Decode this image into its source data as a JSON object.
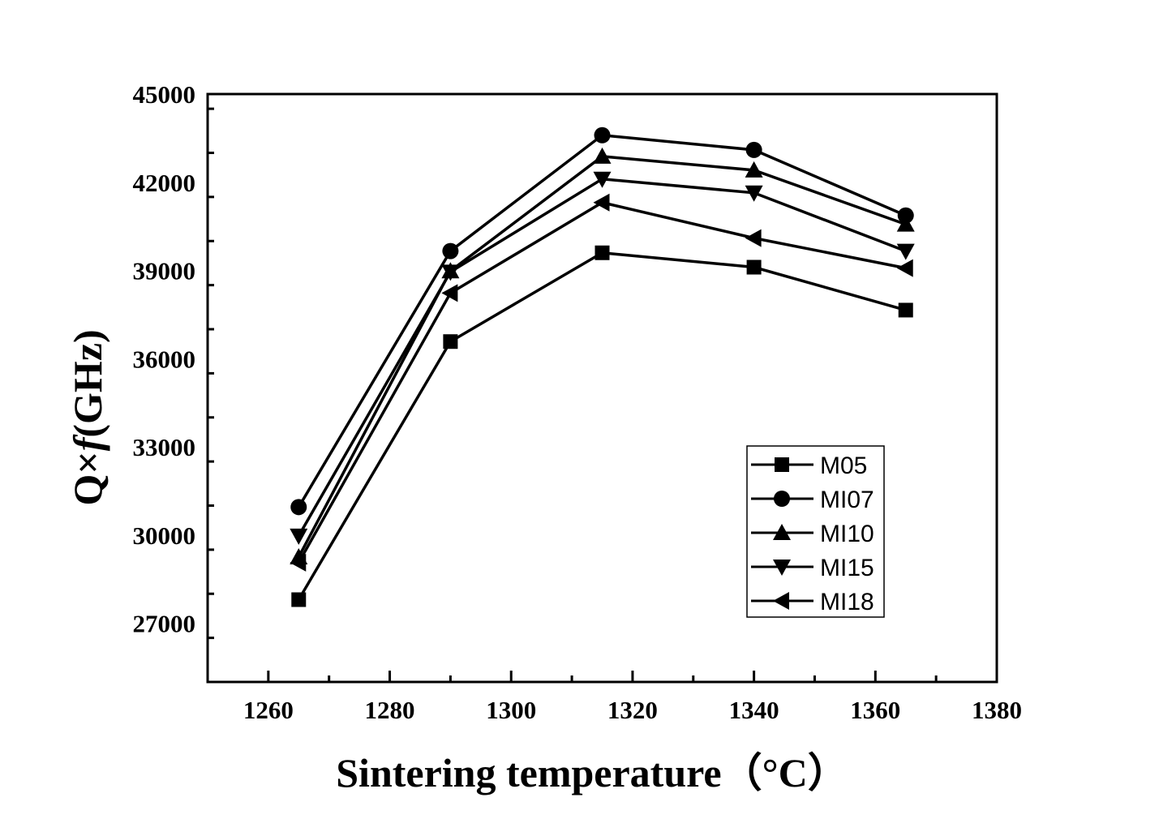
{
  "chart_data": {
    "type": "line",
    "title": "",
    "xlabel": "Sintering temperature（°C）",
    "ylabel_parts": [
      "Q×",
      "f",
      "(GHz)"
    ],
    "xlim": [
      1250,
      1380
    ],
    "ylim": [
      25000,
      45000
    ],
    "xticks": [
      1260,
      1280,
      1300,
      1320,
      1340,
      1360,
      1380
    ],
    "xtick_labels": [
      "1260",
      "1280",
      "1300",
      "1320",
      "1340",
      "1360",
      "1380"
    ],
    "yticks": [
      27000,
      30000,
      33000,
      36000,
      39000,
      42000,
      45000
    ],
    "ytick_labels": [
      "27000",
      "30000",
      "33000",
      "36000",
      "39000",
      "42000",
      "45000"
    ],
    "grid": false,
    "legend_position": "lower-right",
    "x": [
      1265,
      1290,
      1315,
      1340,
      1365
    ],
    "series": [
      {
        "name": "M05",
        "marker": "square",
        "values": [
          27800,
          36580,
          39600,
          39110,
          37650
        ]
      },
      {
        "name": "MI07",
        "marker": "circle",
        "values": [
          30950,
          39660,
          43600,
          43100,
          40870
        ]
      },
      {
        "name": "MI10",
        "marker": "triangle-up",
        "values": [
          29250,
          38980,
          42880,
          42410,
          40570
        ]
      },
      {
        "name": "MI15",
        "marker": "triangle-down",
        "values": [
          29970,
          38950,
          42110,
          41640,
          39660
        ]
      },
      {
        "name": "MI18",
        "marker": "triangle-left",
        "values": [
          29060,
          38230,
          41310,
          40100,
          39080
        ]
      }
    ]
  }
}
